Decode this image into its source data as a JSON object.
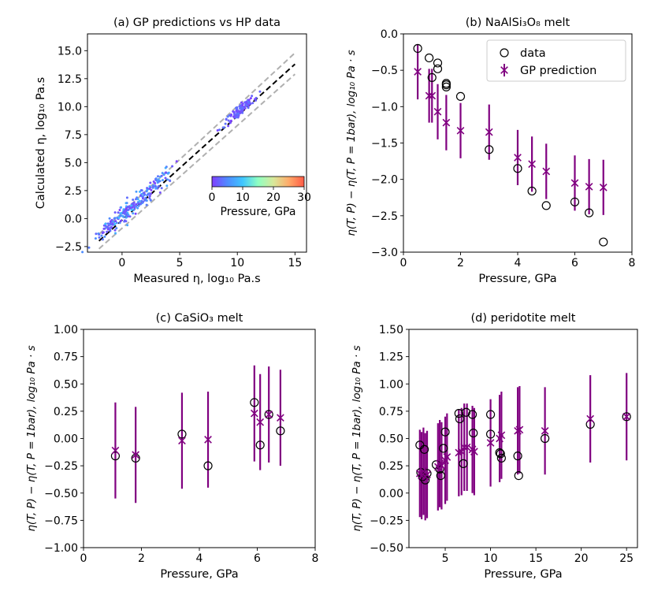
{
  "figure": {
    "background": "#ffffff"
  },
  "chart_data": [
    {
      "id": "a",
      "type": "scatter",
      "title": "(a) GP predictions vs HP data",
      "xlabel": "Measured η, log₁₀ Pa.s",
      "ylabel": "Calculated η, log₁₀ Pa.s",
      "xlim": [
        -3.0,
        16.0
      ],
      "ylim": [
        -3.0,
        16.5
      ],
      "xticks": [
        0,
        5,
        10,
        15
      ],
      "xtick_labels": [
        "0",
        "5",
        "10",
        "15"
      ],
      "yticks": [
        -2.5,
        0.0,
        2.5,
        5.0,
        7.5,
        10.0,
        12.5,
        15.0
      ],
      "ytick_labels": [
        "−2.5",
        "0.0",
        "2.5",
        "5.0",
        "7.5",
        "10.0",
        "12.5",
        "15.0"
      ],
      "lines": [
        {
          "name": "1:1",
          "style": "dashed",
          "color": "#000000",
          "x": [
            -2,
            15
          ],
          "y": [
            -2,
            13.8
          ]
        },
        {
          "name": "upper bound",
          "style": "dashed",
          "color": "#b0b0b0",
          "x": [
            -2,
            15
          ],
          "y": [
            -1.4,
            14.8
          ]
        },
        {
          "name": "lower bound",
          "style": "dashed",
          "color": "#b0b0b0",
          "x": [
            -2,
            15
          ],
          "y": [
            -2.7,
            12.9
          ]
        }
      ],
      "colorbar": {
        "label": "Pressure, GPa",
        "range": [
          0,
          30
        ],
        "ticks": [
          0,
          10,
          20,
          30
        ],
        "tick_labels": [
          "0",
          "10",
          "20",
          "30"
        ],
        "colors": [
          "#7f3fff",
          "#4f8bff",
          "#3fc6ff",
          "#8fffc2",
          "#d8e89a",
          "#ffab6a",
          "#ff5a45"
        ]
      },
      "clusters": [
        {
          "x_center": -0.8,
          "y_center": -0.4,
          "x_spread": 1.3,
          "y_spread": 0.6,
          "count": 60,
          "pressure": [
            0,
            6
          ]
        },
        {
          "x_center": 0.5,
          "y_center": 0.8,
          "x_spread": 1.5,
          "y_spread": 0.8,
          "count": 80,
          "pressure": [
            0,
            10
          ]
        },
        {
          "x_center": 2.5,
          "y_center": 2.6,
          "x_spread": 1.8,
          "y_spread": 0.9,
          "count": 90,
          "pressure": [
            0,
            8
          ]
        },
        {
          "x_center": 10.3,
          "y_center": 9.7,
          "x_spread": 1.0,
          "y_spread": 0.5,
          "count": 120,
          "pressure": [
            0,
            4
          ]
        }
      ]
    },
    {
      "id": "b",
      "type": "scatter",
      "title": "(b) NaAlSi₃O₈ melt",
      "xlabel": "Pressure, GPa",
      "ylabel": "η(T, P) − η(T, P = 1bar), log₁₀ Pa · s",
      "xlim": [
        0,
        8
      ],
      "ylim": [
        -3.0,
        0.0
      ],
      "xticks": [
        0,
        2,
        4,
        6,
        8
      ],
      "xtick_labels": [
        "0",
        "2",
        "4",
        "6",
        "8"
      ],
      "yticks": [
        0.0,
        -0.5,
        -1.0,
        -1.5,
        -2.0,
        -2.5,
        -3.0
      ],
      "ytick_labels": [
        "0.0",
        "−0.5",
        "−1.0",
        "−1.5",
        "−2.0",
        "−2.5",
        "−3.0"
      ],
      "legend": {
        "placement": "top-right",
        "entries": [
          "data",
          "GP prediction"
        ]
      },
      "data_series": {
        "name": "data",
        "x": [
          0.5,
          0.9,
          1.0,
          1.2,
          1.2,
          1.5,
          1.5,
          1.5,
          2.0,
          3.0,
          4.0,
          4.5,
          5.0,
          6.0,
          6.5,
          7.0
        ],
        "y": [
          -0.2,
          -0.33,
          -0.6,
          -0.4,
          -0.48,
          -0.68,
          -0.7,
          -0.73,
          -0.86,
          -1.59,
          -1.85,
          -2.16,
          -2.36,
          -2.31,
          -2.46,
          -2.86
        ]
      },
      "gp_series": {
        "name": "GP prediction",
        "x": [
          0.5,
          0.9,
          1.0,
          1.2,
          1.5,
          2.0,
          3.0,
          4.0,
          4.5,
          5.0,
          6.0,
          6.5,
          7.0
        ],
        "y": [
          -0.52,
          -0.85,
          -0.85,
          -1.07,
          -1.22,
          -1.33,
          -1.35,
          -1.7,
          -1.79,
          -1.89,
          -2.05,
          -2.1,
          -2.11
        ],
        "err": [
          0.38,
          0.37,
          0.37,
          0.38,
          0.38,
          0.38,
          0.38,
          0.38,
          0.38,
          0.38,
          0.38,
          0.38,
          0.38
        ]
      }
    },
    {
      "id": "c",
      "type": "scatter",
      "title": "(c) CaSiO₃ melt",
      "xlabel": "Pressure, GPa",
      "ylabel": "η(T, P) − η(T, P = 1bar), log₁₀ Pa · s",
      "xlim": [
        0,
        8
      ],
      "ylim": [
        -1.0,
        1.0
      ],
      "xticks": [
        0,
        2,
        4,
        6,
        8
      ],
      "xtick_labels": [
        "0",
        "2",
        "4",
        "6",
        "8"
      ],
      "yticks": [
        1.0,
        0.75,
        0.5,
        0.25,
        0.0,
        -0.25,
        -0.5,
        -0.75,
        -1.0
      ],
      "ytick_labels": [
        "1.00",
        "0.75",
        "0.50",
        "0.25",
        "0.00",
        "−0.25",
        "−0.50",
        "−0.75",
        "−1.00"
      ],
      "data_series": {
        "name": "data",
        "x": [
          1.1,
          1.8,
          3.4,
          4.3,
          5.9,
          6.1,
          6.4,
          6.8
        ],
        "y": [
          -0.16,
          -0.18,
          0.04,
          -0.25,
          0.33,
          -0.06,
          0.22,
          0.07
        ]
      },
      "gp_series": {
        "name": "GP prediction",
        "x": [
          1.1,
          1.8,
          3.4,
          4.3,
          5.9,
          6.1,
          6.4,
          6.8
        ],
        "y": [
          -0.11,
          -0.15,
          -0.02,
          -0.01,
          0.23,
          0.15,
          0.22,
          0.19
        ],
        "err": [
          0.44,
          0.44,
          0.44,
          0.44,
          0.44,
          0.44,
          0.44,
          0.44
        ]
      }
    },
    {
      "id": "d",
      "type": "scatter",
      "title": "(d) peridotite melt",
      "xlabel": "Pressure, GPa",
      "ylabel": "η(T, P) − η(T, P = 1bar), log₁₀ Pa · s",
      "xlim": [
        1.0,
        26.2
      ],
      "ylim": [
        -0.5,
        1.5
      ],
      "xticks": [
        5,
        10,
        15,
        20,
        25
      ],
      "xtick_labels": [
        "5",
        "10",
        "15",
        "20",
        "25"
      ],
      "yticks": [
        1.5,
        1.25,
        1.0,
        0.75,
        0.5,
        0.25,
        0.0,
        -0.25,
        -0.5
      ],
      "ytick_labels": [
        "1.50",
        "1.25",
        "1.00",
        "0.75",
        "0.50",
        "0.25",
        "0.00",
        "−0.25",
        "−0.50"
      ],
      "data_series": {
        "name": "data",
        "x": [
          2.2,
          2.3,
          2.5,
          2.7,
          2.8,
          3.0,
          4.0,
          4.4,
          4.5,
          4.8,
          5.0,
          6.5,
          6.6,
          7.0,
          7.3,
          8.0,
          8.1,
          10.0,
          10.0,
          11.0,
          11.1,
          11.2,
          13.0,
          13.1,
          16.0,
          21.0,
          25.0
        ],
        "y": [
          0.44,
          0.19,
          0.15,
          0.4,
          0.12,
          0.18,
          0.26,
          0.22,
          0.16,
          0.41,
          0.56,
          0.73,
          0.68,
          0.27,
          0.74,
          0.72,
          0.55,
          0.54,
          0.72,
          0.37,
          0.36,
          0.32,
          0.34,
          0.16,
          0.5,
          0.63,
          0.7
        ]
      },
      "gp_series": {
        "name": "GP prediction",
        "x": [
          2.2,
          2.4,
          2.6,
          2.8,
          3.0,
          4.2,
          4.4,
          4.6,
          5.0,
          5.2,
          6.5,
          6.8,
          7.1,
          7.4,
          8.0,
          8.2,
          10.0,
          11.0,
          11.2,
          13.0,
          13.2,
          16.0,
          21.0,
          25.0
        ],
        "y": [
          0.18,
          0.16,
          0.2,
          0.15,
          0.17,
          0.24,
          0.27,
          0.25,
          0.3,
          0.33,
          0.37,
          0.38,
          0.42,
          0.42,
          0.4,
          0.38,
          0.46,
          0.5,
          0.53,
          0.57,
          0.58,
          0.57,
          0.68,
          0.7
        ],
        "err": [
          0.4,
          0.4,
          0.4,
          0.4,
          0.4,
          0.4,
          0.4,
          0.4,
          0.4,
          0.4,
          0.4,
          0.4,
          0.4,
          0.4,
          0.4,
          0.4,
          0.4,
          0.4,
          0.4,
          0.4,
          0.4,
          0.4,
          0.4,
          0.4
        ]
      }
    }
  ],
  "style": {
    "data_marker_color": "#000000",
    "gp_color": "#800080"
  }
}
